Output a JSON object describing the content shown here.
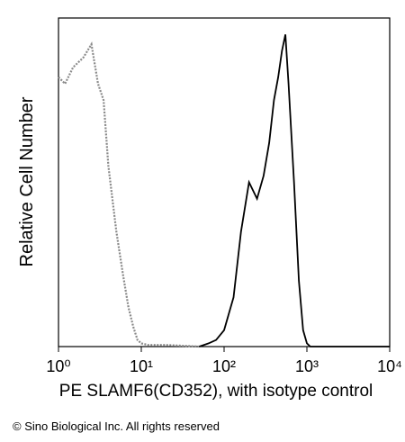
{
  "chart_data": {
    "type": "line",
    "x_label": "PE SLAMF6(CD352), with isotype control",
    "y_label": "Relative Cell Number",
    "footer": "© Sino Biological Inc. All rights reserved",
    "xscale": "log",
    "xlim": [
      1,
      10000
    ],
    "xticks": [
      {
        "value": 1,
        "label": "10⁰"
      },
      {
        "value": 10,
        "label": "10¹"
      },
      {
        "value": 100,
        "label": "10²"
      },
      {
        "value": 1000,
        "label": "10³"
      },
      {
        "value": 10000,
        "label": "10⁴"
      }
    ],
    "ylim": [
      0,
      100
    ],
    "series": [
      {
        "color": "#8a8a8a",
        "dashed": true,
        "x": [
          1,
          1.2,
          1.5,
          2,
          2.5,
          3,
          3.5,
          4,
          5,
          6,
          7,
          8,
          9,
          10,
          12,
          20,
          50
        ],
        "values": [
          82,
          80,
          85,
          88,
          92,
          80,
          75,
          55,
          35,
          22,
          12,
          6,
          2,
          1,
          0.5,
          0.5,
          0
        ]
      },
      {
        "color": "#000000",
        "dashed": false,
        "x": [
          50,
          65,
          80,
          100,
          130,
          160,
          200,
          250,
          300,
          350,
          400,
          450,
          500,
          550,
          600,
          700,
          800,
          900,
          1000,
          1100,
          2000,
          10000
        ],
        "values": [
          0,
          1,
          2,
          5,
          15,
          35,
          50,
          45,
          52,
          62,
          75,
          82,
          90,
          95,
          80,
          50,
          20,
          5,
          1,
          0,
          0,
          0
        ]
      }
    ]
  }
}
